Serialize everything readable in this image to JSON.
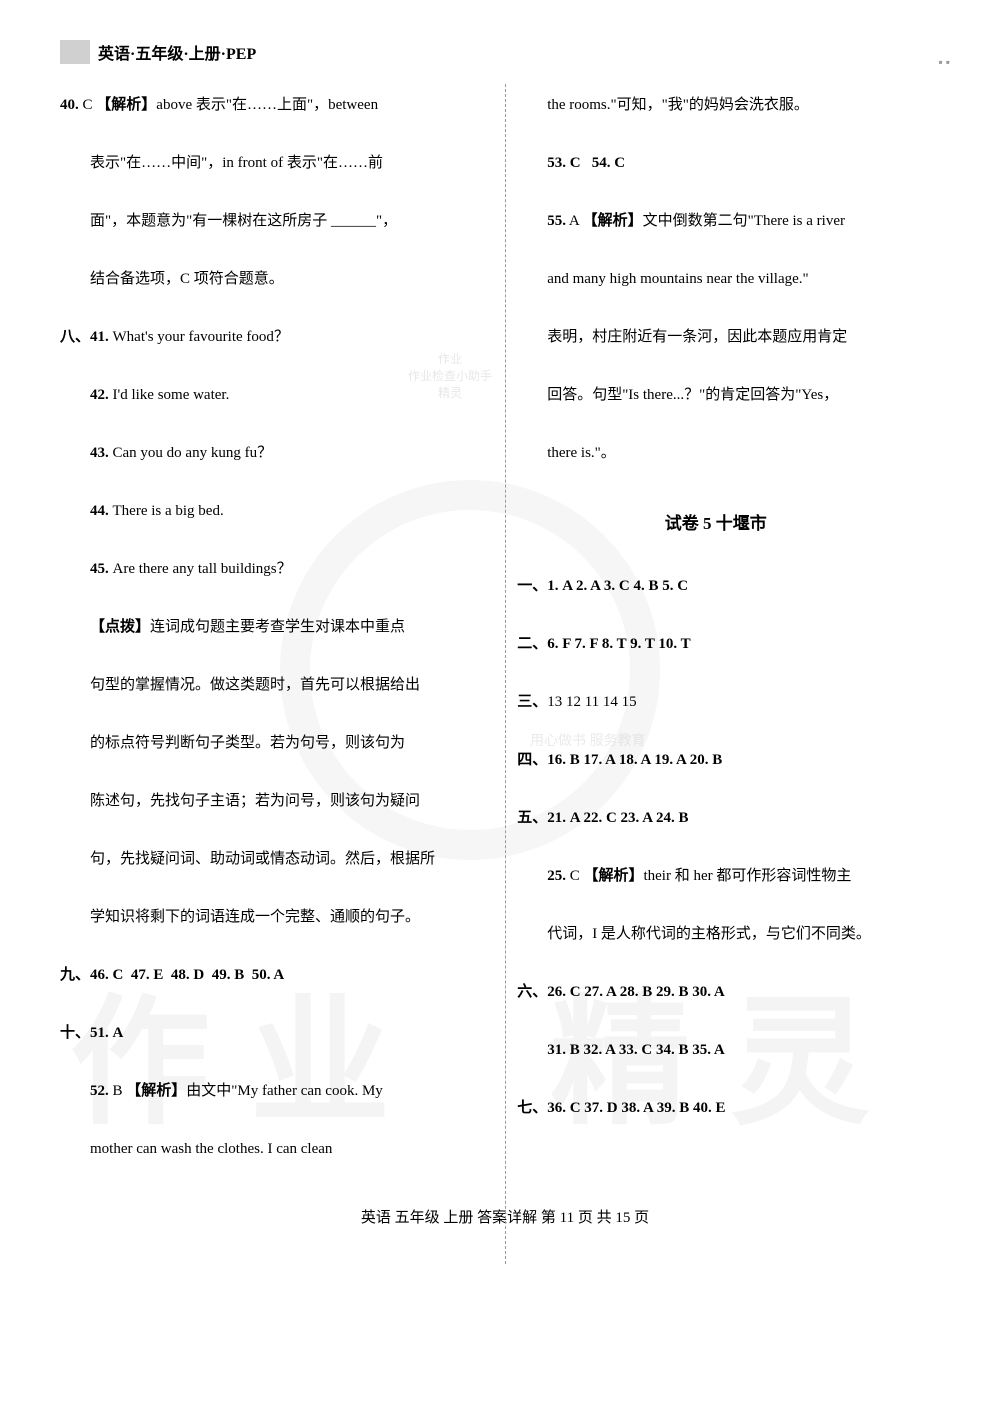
{
  "header": {
    "title": "英语·五年级·上册·PEP"
  },
  "left_column": {
    "q40": {
      "num": "40.",
      "ans": "C",
      "label": "【解析】",
      "text1": "above 表示\"在……上面\"，between",
      "text2": "表示\"在……中间\"，in front of 表示\"在……前",
      "text3": "面\"，本题意为\"有一棵树在这所房子 ______\"，",
      "text4": "结合备选项，C 项符合题意。"
    },
    "section8": {
      "prefix": "八、",
      "q41": {
        "num": "41.",
        "text": "What's your favourite food？"
      },
      "q42": {
        "num": "42.",
        "text": "I'd like some water."
      },
      "q43": {
        "num": "43.",
        "text": "Can you do any kung fu？"
      },
      "q44": {
        "num": "44.",
        "text": "There is a big bed."
      },
      "q45": {
        "num": "45.",
        "text": "Are there any tall buildings？"
      }
    },
    "dianbo": {
      "label": "【点拨】",
      "text1": "连词成句题主要考查学生对课本中重点",
      "text2": "句型的掌握情况。做这类题时，首先可以根据给出",
      "text3": "的标点符号判断句子类型。若为句号，则该句为",
      "text4": "陈述句，先找句子主语；若为问号，则该句为疑问",
      "text5": "句，先找疑问词、助动词或情态动词。然后，根据所",
      "text6": "学知识将剩下的词语连成一个完整、通顺的句子。"
    },
    "section9": {
      "prefix": "九、",
      "q46": "46. C",
      "q47": "47. E",
      "q48": "48. D",
      "q49": "49. B",
      "q50": "50. A"
    },
    "section10": {
      "prefix": "十、",
      "q51": "51. A",
      "q52": {
        "num": "52.",
        "ans": "B",
        "label": "【解析】",
        "text1": "由文中\"My father can cook. My",
        "text2": "mother can wash the clothes. I can clean"
      }
    }
  },
  "right_column": {
    "q52_cont": {
      "text1": "the rooms.\"可知，\"我\"的妈妈会洗衣服。"
    },
    "q53_54": {
      "q53": "53. C",
      "q54": "54. C"
    },
    "q55": {
      "num": "55.",
      "ans": "A",
      "label": "【解析】",
      "text1": "文中倒数第二句\"There is a river",
      "text2": "and many high mountains near the village.\"",
      "text3": "表明，村庄附近有一条河，因此本题应用肯定",
      "text4": "回答。句型\"Is there...？\"的肯定回答为\"Yes，",
      "text5": "there is.\"。"
    },
    "paper5": {
      "title": "试卷 5    十堰市",
      "s1": {
        "prefix": "一、",
        "ans": "1. A  2. A  3. C  4. B  5. C"
      },
      "s2": {
        "prefix": "二、",
        "ans": "6. F  7. F  8. T  9. T  10. T"
      },
      "s3": {
        "prefix": "三、",
        "ans": "13  12  11  14  15"
      },
      "s4": {
        "prefix": "四、",
        "ans": "16. B  17. A  18. A  19. A  20. B"
      },
      "s5": {
        "prefix": "五、",
        "ans": "21. A  22. C  23. A  24. B"
      },
      "q25": {
        "num": "25.",
        "ans": "C",
        "label": "【解析】",
        "text1": "their 和 her 都可作形容词性物主",
        "text2": "代词，I 是人称代词的主格形式，与它们不同类。"
      },
      "s6": {
        "prefix": "六、",
        "ans": "26. C  27. A  28. B  29. B  30. A"
      },
      "s6b": {
        "ans": "31. B  32. A  33. C  34. B  35. A"
      },
      "s7": {
        "prefix": "七、",
        "ans": "36. C  37. D  38. A  39. B  40. E"
      }
    }
  },
  "footer": {
    "text": "英语  五年级  上册  答案详解  第 11 页  共 15 页"
  },
  "watermark": {
    "small": "用心做书  服务教育"
  }
}
